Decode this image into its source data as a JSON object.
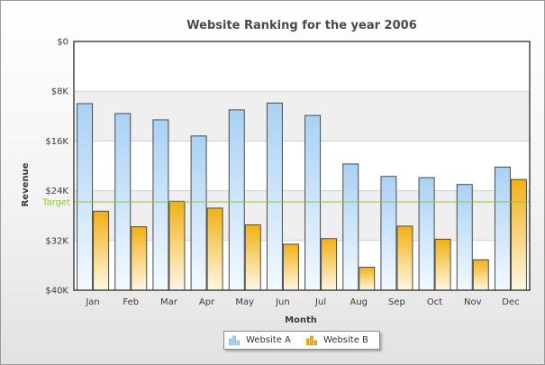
{
  "chart_data": {
    "type": "bar",
    "title": "Website Ranking for the year 2006",
    "xlabel": "Month",
    "ylabel": "Revenue",
    "categories": [
      "Jan",
      "Feb",
      "Mar",
      "Apr",
      "May",
      "Jun",
      "Jul",
      "Aug",
      "Sep",
      "Oct",
      "Nov",
      "Dec"
    ],
    "y_ticks": [
      "$0",
      "$8K",
      "$16K",
      "$24K",
      "$32K",
      "$40K"
    ],
    "y_tick_values": [
      0,
      8000,
      16000,
      24000,
      32000,
      40000
    ],
    "ylim": [
      0,
      40000
    ],
    "y_inverted": true,
    "series": [
      {
        "name": "Website A",
        "color": "#b3d8f7",
        "values": [
          10000,
          11600,
          12600,
          15200,
          11000,
          9900,
          11900,
          19700,
          21700,
          21900,
          23000,
          20200
        ]
      },
      {
        "name": "Website B",
        "color": "#f5b81e",
        "values": [
          27300,
          29800,
          25700,
          26800,
          29500,
          32600,
          31700,
          36300,
          29700,
          31800,
          35100,
          22200
        ]
      }
    ],
    "target": {
      "label": "Target",
      "value": 25800,
      "color": "#8cc63f"
    },
    "grid": true,
    "alternate_bands": true,
    "legend": {
      "placement": "bottom-center"
    }
  }
}
